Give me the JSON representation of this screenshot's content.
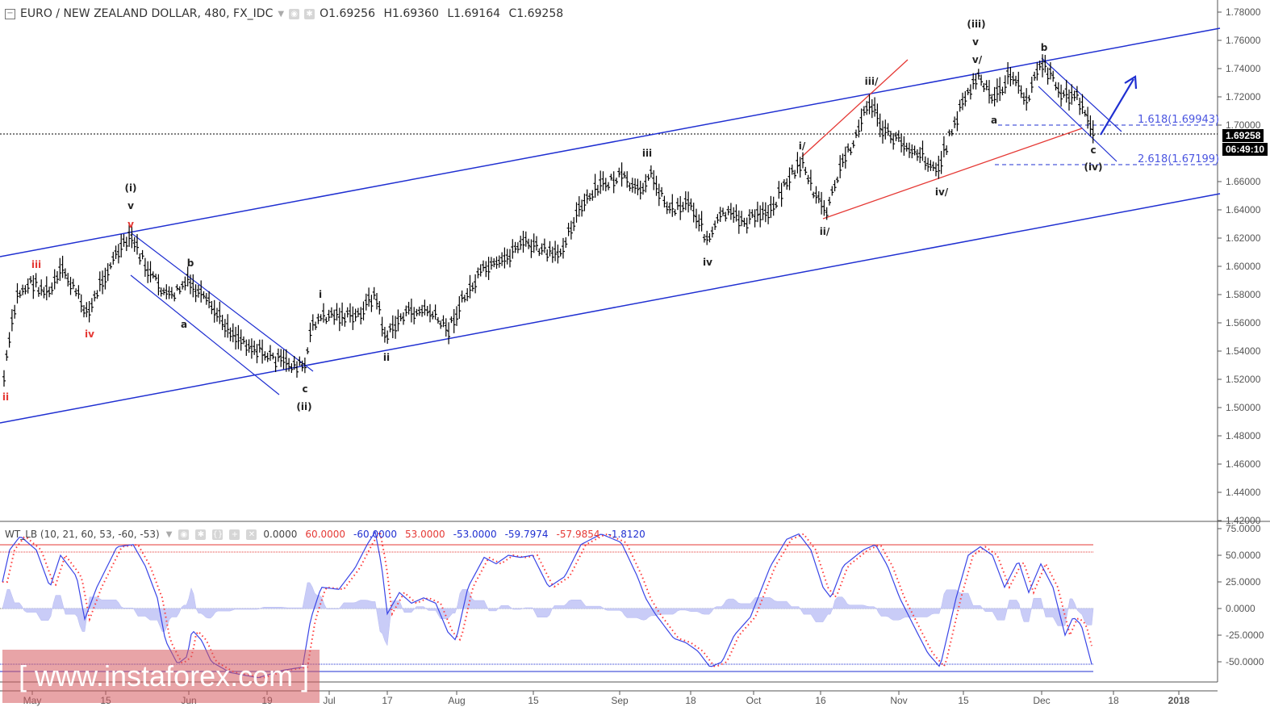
{
  "header": {
    "symbol": "EURO / NEW ZEALAND DOLLAR, 480, FX_IDC",
    "open": "O1.69256",
    "high": "H1.69360",
    "low": "L1.69164",
    "close": "C1.69258"
  },
  "price_axis": {
    "ticks": [
      "1.78000",
      "1.76000",
      "1.74000",
      "1.72000",
      "1.70000",
      "1.66000",
      "1.64000",
      "1.62000",
      "1.60000",
      "1.58000",
      "1.56000",
      "1.54000",
      "1.52000",
      "1.50000",
      "1.48000",
      "1.46000",
      "1.44000",
      "1.42000"
    ],
    "current_price": "1.69258",
    "countdown": "06:49:10"
  },
  "indicator": {
    "name": "WT_LB (10, 21, 60, 53, -60, -53)",
    "values": [
      {
        "text": "0.0000",
        "color": "#444444"
      },
      {
        "text": "60.0000",
        "color": "#e53935"
      },
      {
        "text": "-60.0000",
        "color": "#1f2fd1"
      },
      {
        "text": "53.0000",
        "color": "#e53935"
      },
      {
        "text": "-53.0000",
        "color": "#1f2fd1"
      },
      {
        "text": "-59.7974",
        "color": "#1f2fd1"
      },
      {
        "text": "-57.9854",
        "color": "#e53935"
      },
      {
        "text": "-1.8120",
        "color": "#1f2fd1"
      }
    ],
    "axis_ticks": [
      "75.0000",
      "50.0000",
      "25.0000",
      "0.0000",
      "-25.0000",
      "-50.0000"
    ]
  },
  "time_axis": {
    "ticks": [
      "May",
      "15",
      "Jun",
      "19",
      "Jul",
      "17",
      "Aug",
      "15",
      "Sep",
      "18",
      "Oct",
      "16",
      "Nov",
      "15",
      "Dec",
      "18",
      "2018"
    ]
  },
  "fib_levels": [
    {
      "label": "1.618(1.69943)"
    },
    {
      "label": "2.618(1.67199)"
    }
  ],
  "wave_labels": {
    "red": [
      "ii",
      "iii",
      "iv",
      "v"
    ],
    "black": [
      "(i)",
      "v",
      "a",
      "b",
      "c",
      "(ii)",
      "i",
      "ii",
      "iii",
      "iv",
      "i/",
      "ii/",
      "iii/",
      "iv/",
      "(iii)",
      "v",
      "v/",
      "a",
      "b",
      "c",
      "(iv)"
    ]
  },
  "watermark": "[  www.instaforex.com  ]",
  "colors": {
    "channel": "#1f2fd1",
    "trendline_red": "#e53935",
    "bars": "#000000",
    "wt1": "#3a45e6",
    "wt2": "#ff3b3b",
    "hist_fill": "#c9ccf7"
  },
  "chart_data": {
    "type": "ohlc",
    "title": "EURO / NEW ZEALAND DOLLAR, 480, FX_IDC",
    "xlabel": "",
    "ylabel": "",
    "ylim": [
      1.42,
      1.78
    ],
    "x": [
      "May",
      "15",
      "Jun",
      "19",
      "Jul",
      "17",
      "Aug",
      "15",
      "Sep",
      "18",
      "Oct",
      "16",
      "Nov",
      "15",
      "Dec",
      "18",
      "2018"
    ],
    "series": [
      {
        "name": "EURNZD close (approx)",
        "points": [
          [
            "late Apr",
            1.52
          ],
          [
            "May",
            1.585
          ],
          [
            "May 10",
            1.575
          ],
          [
            "May 15",
            1.59
          ],
          [
            "May 22",
            1.622
          ],
          [
            "Jun",
            1.575
          ],
          [
            "Jun 8",
            1.58
          ],
          [
            "Jun 19",
            1.545
          ],
          [
            "Jun 27",
            1.528
          ],
          [
            "Jul",
            1.57
          ],
          [
            "Jul 10",
            1.585
          ],
          [
            "Jul 17",
            1.568
          ],
          [
            "Jul 27",
            1.558
          ],
          [
            "Aug",
            1.6
          ],
          [
            "Aug 10",
            1.612
          ],
          [
            "Aug 15",
            1.61
          ],
          [
            "Aug 25",
            1.645
          ],
          [
            "Sep",
            1.66
          ],
          [
            "Sep 5",
            1.655
          ],
          [
            "Sep 18",
            1.62
          ],
          [
            "Sep 25",
            1.638
          ],
          [
            "Oct",
            1.643
          ],
          [
            "Oct 10",
            1.675
          ],
          [
            "Oct 16",
            1.638
          ],
          [
            "Oct 20",
            1.69
          ],
          [
            "Oct 26",
            1.72
          ],
          [
            "Nov",
            1.69
          ],
          [
            "Nov 10",
            1.668
          ],
          [
            "Nov 15",
            1.715
          ],
          [
            "Nov 20",
            1.737
          ],
          [
            "Nov 25",
            1.722
          ],
          [
            "Dec",
            1.745
          ],
          [
            "Dec 5",
            1.712
          ],
          [
            "Dec 10",
            1.693
          ]
        ]
      }
    ],
    "annotations": [
      "1.618(1.69943)",
      "2.618(1.67199)"
    ],
    "indicator": {
      "name": "WT_LB",
      "ylim": [
        -60,
        75
      ],
      "levels": [
        60,
        53,
        0,
        -53,
        -60
      ]
    },
    "grid": false
  }
}
